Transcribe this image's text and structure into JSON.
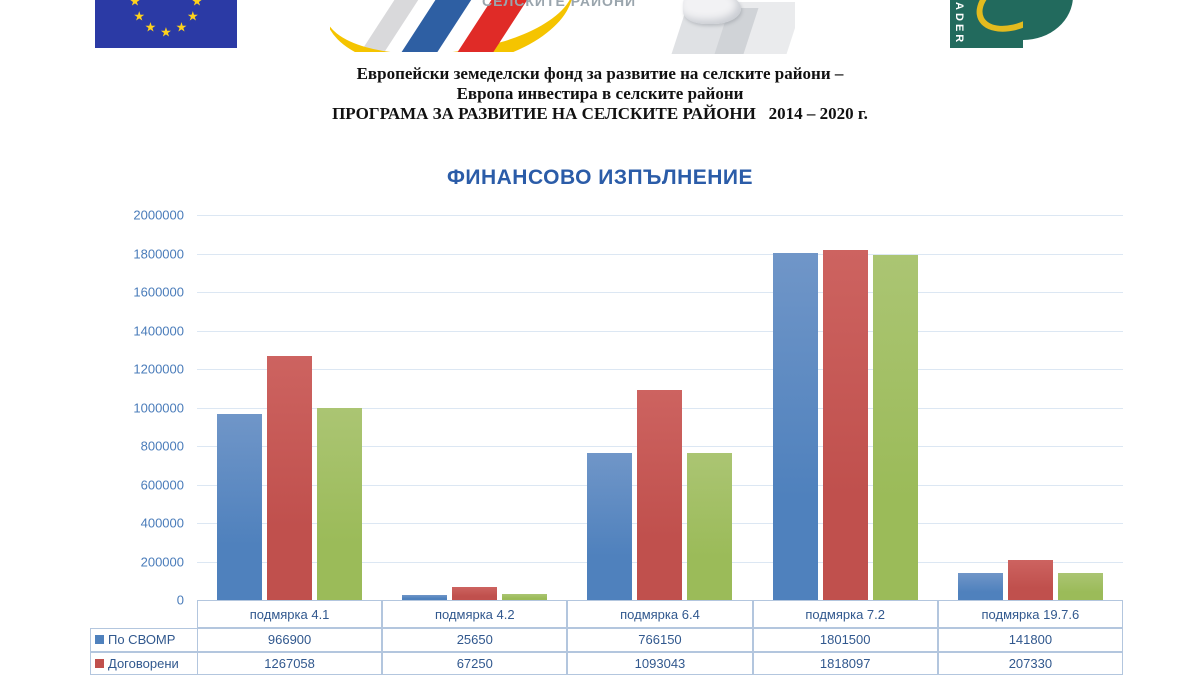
{
  "header": {
    "logos": {
      "eu_flag": "eu-flag",
      "prsr_caption": "СЕЛСКИТЕ РАЙОНИ",
      "leader_text": "LEADER"
    },
    "lines": [
      "Европейски земеделски фонд за развитие на селските райони –",
      "Европа инвестира в селските райони",
      "ПРОГРАМА ЗА РАЗВИТИЕ НА СЕЛСКИТЕ РАЙОНИ   2014 – 2020 г."
    ]
  },
  "chart_data": {
    "type": "bar",
    "title": "ФИНАНСОВО ИЗПЪЛНЕНИЕ",
    "categories": [
      "подмярка 4.1",
      "подмярка 4.2",
      "подмярка 6.4",
      "подмярка 7.2",
      "подмярка 19.7.6"
    ],
    "series": [
      {
        "name": "По СВОМР",
        "color": "#4f81bd",
        "color_light": "#7096c8",
        "in_table": true,
        "values": [
          966900,
          25650,
          766150,
          1801500,
          141800
        ]
      },
      {
        "name": "Договорени",
        "color": "#c0504d",
        "color_light": "#cd6360",
        "in_table": true,
        "values": [
          1267058,
          67250,
          1093043,
          1818097,
          207330
        ]
      },
      {
        "name": "",
        "color": "#9bbb59",
        "color_light": "#abc573",
        "in_table": false,
        "estimated": true,
        "values": [
          1000000,
          30000,
          765000,
          1790000,
          142000
        ]
      }
    ],
    "ylim": [
      0,
      2000000
    ],
    "ytick_step": 200000,
    "grid": true,
    "legend_position": "table-left"
  },
  "colors": {
    "title_blue": "#2b5ca8",
    "axis_label_blue": "#4a7cba",
    "table_text_blue": "#31588e",
    "table_border": "#b3c6de",
    "gridline": "#dce7f3",
    "eu_flag_blue": "#2b3aa5",
    "eu_star_yellow": "#ffd21c",
    "leader_green": "#226a5d",
    "leader_yellow": "#e3bb1e"
  }
}
